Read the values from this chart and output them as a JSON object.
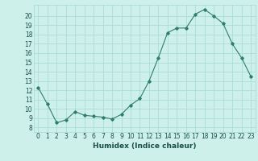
{
  "x": [
    0,
    1,
    2,
    3,
    4,
    5,
    6,
    7,
    8,
    9,
    10,
    11,
    12,
    13,
    14,
    15,
    16,
    17,
    18,
    19,
    20,
    21,
    22,
    23
  ],
  "y": [
    12.3,
    10.5,
    8.5,
    8.8,
    9.7,
    9.3,
    9.2,
    9.1,
    8.9,
    9.4,
    10.4,
    11.1,
    13.0,
    15.5,
    18.2,
    18.7,
    18.7,
    20.2,
    20.7,
    20.0,
    19.2,
    17.0,
    15.5,
    13.5
  ],
  "xlabel": "Humidex (Indice chaleur)",
  "xlim": [
    -0.5,
    23.5
  ],
  "ylim": [
    7.5,
    21.2
  ],
  "yticks": [
    8,
    9,
    10,
    11,
    12,
    13,
    14,
    15,
    16,
    17,
    18,
    19,
    20
  ],
  "xtick_labels": [
    "0",
    "1",
    "2",
    "3",
    "4",
    "5",
    "6",
    "7",
    "8",
    "9",
    "10",
    "11",
    "12",
    "13",
    "14",
    "15",
    "16",
    "17",
    "18",
    "19",
    "20",
    "21",
    "22",
    "23"
  ],
  "line_color": "#2e7d6e",
  "marker": "D",
  "marker_size": 1.8,
  "bg_color": "#cef0ea",
  "grid_color": "#aaddd6",
  "font_color": "#1a4f47",
  "tick_fontsize": 5.5,
  "xlabel_fontsize": 6.5
}
